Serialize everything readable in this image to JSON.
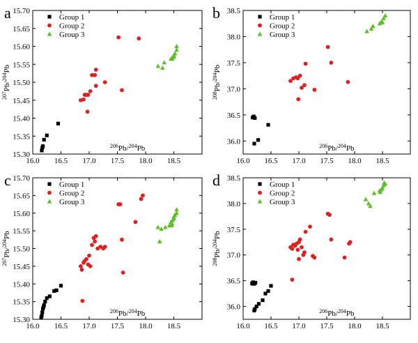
{
  "colors": {
    "group1": "#000000",
    "group2": "#e02020",
    "group3": "#5cbf2a"
  },
  "chart_data": [
    {
      "type": "scatter",
      "panel": "a",
      "xlabel": "206Pb/204Pb",
      "ylabel": "207Pb/204Pb",
      "xlim": [
        16.0,
        19.0
      ],
      "ylim": [
        15.3,
        15.7
      ],
      "xticks": [
        "16.0",
        "16.5",
        "17.0",
        "17.5",
        "18.0",
        "18.5"
      ],
      "yticks": [
        "15.30",
        "15.35",
        "15.40",
        "15.45",
        "15.50",
        "15.55",
        "15.60",
        "15.65",
        "15.70"
      ],
      "legend_position": "top-left",
      "series": [
        {
          "name": "Group 1",
          "marker": "square",
          "points": [
            [
              16.16,
              15.31
            ],
            [
              16.17,
              15.318
            ],
            [
              16.18,
              15.322
            ],
            [
              16.2,
              15.34
            ],
            [
              16.25,
              15.352
            ],
            [
              16.45,
              15.385
            ]
          ]
        },
        {
          "name": "Group 2",
          "marker": "circle",
          "points": [
            [
              16.85,
              15.45
            ],
            [
              16.9,
              15.452
            ],
            [
              16.92,
              15.465
            ],
            [
              16.95,
              15.465
            ],
            [
              16.98,
              15.465
            ],
            [
              16.97,
              15.418
            ],
            [
              17.02,
              15.475
            ],
            [
              17.05,
              15.52
            ],
            [
              17.1,
              15.52
            ],
            [
              17.12,
              15.535
            ],
            [
              17.12,
              15.49
            ],
            [
              17.28,
              15.5
            ],
            [
              17.52,
              15.625
            ],
            [
              17.58,
              15.478
            ],
            [
              17.88,
              15.622
            ]
          ]
        },
        {
          "name": "Group 3",
          "marker": "triangle",
          "points": [
            [
              18.22,
              15.545
            ],
            [
              18.3,
              15.54
            ],
            [
              18.33,
              15.555
            ],
            [
              18.45,
              15.565
            ],
            [
              18.48,
              15.57
            ],
            [
              18.5,
              15.575
            ],
            [
              18.52,
              15.58
            ],
            [
              18.55,
              15.59
            ],
            [
              18.55,
              15.6
            ],
            [
              18.47,
              15.565
            ],
            [
              18.5,
              15.57
            ]
          ]
        }
      ]
    },
    {
      "type": "scatter",
      "panel": "b",
      "xlabel": "206Pb/204Pb",
      "ylabel": "208Pb/204Pb",
      "xlim": [
        16.0,
        19.0
      ],
      "ylim": [
        35.75,
        38.5
      ],
      "xticks": [
        "16.0",
        "16.5",
        "17.0",
        "17.5",
        "18.0",
        "18.5"
      ],
      "yticks": [
        "36.0",
        "36.5",
        "37.0",
        "37.5",
        "38.0",
        "38.5"
      ],
      "legend_position": "top-left",
      "series": [
        {
          "name": "Group 1",
          "marker": "square",
          "points": [
            [
              16.17,
              36.45
            ],
            [
              16.19,
              36.47
            ],
            [
              16.21,
              36.44
            ],
            [
              16.2,
              35.95
            ],
            [
              16.27,
              36.02
            ],
            [
              16.45,
              36.31
            ]
          ]
        },
        {
          "name": "Group 2",
          "marker": "circle",
          "points": [
            [
              16.85,
              37.15
            ],
            [
              16.9,
              37.2
            ],
            [
              16.95,
              37.22
            ],
            [
              16.98,
              37.2
            ],
            [
              17.02,
              37.25
            ],
            [
              16.99,
              36.8
            ],
            [
              17.05,
              37.02
            ],
            [
              17.1,
              37.07
            ],
            [
              17.12,
              37.48
            ],
            [
              17.28,
              36.98
            ],
            [
              17.52,
              37.8
            ],
            [
              17.58,
              37.5
            ],
            [
              17.88,
              37.13
            ]
          ]
        },
        {
          "name": "Group 3",
          "marker": "triangle",
          "points": [
            [
              18.22,
              38.1
            ],
            [
              18.3,
              38.15
            ],
            [
              18.33,
              38.2
            ],
            [
              18.45,
              38.25
            ],
            [
              18.48,
              38.28
            ],
            [
              18.5,
              38.27
            ],
            [
              18.52,
              38.35
            ],
            [
              18.55,
              38.4
            ]
          ]
        }
      ]
    },
    {
      "type": "scatter",
      "panel": "c",
      "xlabel": "206Pb/204Pb",
      "ylabel": "207Pb/204Pb",
      "xlim": [
        16.0,
        19.0
      ],
      "ylim": [
        15.3,
        15.7
      ],
      "xticks": [
        "16.0",
        "16.5",
        "17.0",
        "17.5",
        "18.0",
        "18.5"
      ],
      "yticks": [
        "15.30",
        "15.35",
        "15.40",
        "15.45",
        "15.50",
        "15.55",
        "15.60",
        "15.65",
        "15.70"
      ],
      "legend_position": "top-left",
      "series": [
        {
          "name": "Group 1",
          "marker": "square",
          "points": [
            [
              16.15,
              15.305
            ],
            [
              16.16,
              15.31
            ],
            [
              16.17,
              15.32
            ],
            [
              16.18,
              15.33
            ],
            [
              16.19,
              15.335
            ],
            [
              16.2,
              15.34
            ],
            [
              16.22,
              15.35
            ],
            [
              16.25,
              15.36
            ],
            [
              16.3,
              15.365
            ],
            [
              16.38,
              15.38
            ],
            [
              16.42,
              15.382
            ],
            [
              16.5,
              15.395
            ]
          ]
        },
        {
          "name": "Group 2",
          "marker": "circle",
          "points": [
            [
              16.85,
              15.45
            ],
            [
              16.87,
              15.44
            ],
            [
              16.9,
              15.46
            ],
            [
              16.92,
              15.465
            ],
            [
              16.95,
              15.47
            ],
            [
              16.98,
              15.455
            ],
            [
              17.0,
              15.48
            ],
            [
              17.02,
              15.45
            ],
            [
              17.05,
              15.51
            ],
            [
              17.08,
              15.53
            ],
            [
              17.1,
              15.52
            ],
            [
              17.12,
              15.535
            ],
            [
              17.15,
              15.5
            ],
            [
              17.2,
              15.505
            ],
            [
              17.25,
              15.5
            ],
            [
              17.28,
              15.505
            ],
            [
              16.88,
              15.352
            ],
            [
              17.52,
              15.625
            ],
            [
              17.55,
              15.625
            ],
            [
              17.58,
              15.525
            ],
            [
              17.6,
              15.432
            ],
            [
              17.82,
              15.575
            ],
            [
              17.92,
              15.64
            ],
            [
              17.95,
              15.65
            ]
          ]
        },
        {
          "name": "Group 3",
          "marker": "triangle",
          "points": [
            [
              18.22,
              15.56
            ],
            [
              18.25,
              15.52
            ],
            [
              18.28,
              15.555
            ],
            [
              18.35,
              15.56
            ],
            [
              18.42,
              15.565
            ],
            [
              18.45,
              15.575
            ],
            [
              18.47,
              15.57
            ],
            [
              18.48,
              15.58
            ],
            [
              18.5,
              15.59
            ],
            [
              18.52,
              15.595
            ],
            [
              18.55,
              15.6
            ],
            [
              18.55,
              15.61
            ],
            [
              18.5,
              15.585
            ],
            [
              18.46,
              15.565
            ]
          ]
        }
      ]
    },
    {
      "type": "scatter",
      "panel": "d",
      "xlabel": "206Pb/204Pb",
      "ylabel": "208Pb/204Pb",
      "xlim": [
        16.0,
        19.0
      ],
      "ylim": [
        35.75,
        38.5
      ],
      "xticks": [
        "16.0",
        "16.5",
        "17.0",
        "17.5",
        "18.0",
        "18.5"
      ],
      "yticks": [
        "36.0",
        "36.5",
        "37.0",
        "37.5",
        "38.0",
        "38.5"
      ],
      "legend_position": "top-left",
      "series": [
        {
          "name": "Group 1",
          "marker": "square",
          "points": [
            [
              16.16,
              36.45
            ],
            [
              16.17,
              36.44
            ],
            [
              16.18,
              36.47
            ],
            [
              16.19,
              36.45
            ],
            [
              16.2,
              36.44
            ],
            [
              16.22,
              36.46
            ],
            [
              16.2,
              35.92
            ],
            [
              16.21,
              35.95
            ],
            [
              16.24,
              36.0
            ],
            [
              16.28,
              36.05
            ],
            [
              16.35,
              36.12
            ],
            [
              16.4,
              36.25
            ],
            [
              16.45,
              36.3
            ],
            [
              16.5,
              36.4
            ]
          ]
        },
        {
          "name": "Group 2",
          "marker": "circle",
          "points": [
            [
              16.85,
              37.15
            ],
            [
              16.88,
              37.12
            ],
            [
              16.9,
              37.2
            ],
            [
              16.93,
              37.18
            ],
            [
              16.96,
              37.22
            ],
            [
              16.98,
              37.1
            ],
            [
              17.0,
              37.25
            ],
            [
              17.02,
              37.3
            ],
            [
              17.05,
              37.15
            ],
            [
              17.08,
              37.0
            ],
            [
              17.1,
              37.05
            ],
            [
              17.12,
              37.45
            ],
            [
              17.2,
              37.55
            ],
            [
              17.25,
              36.98
            ],
            [
              17.28,
              36.95
            ],
            [
              16.88,
              36.52
            ],
            [
              17.0,
              36.92
            ],
            [
              17.52,
              37.8
            ],
            [
              17.55,
              37.78
            ],
            [
              17.58,
              37.3
            ],
            [
              17.82,
              36.95
            ],
            [
              17.9,
              37.22
            ],
            [
              17.92,
              37.25
            ]
          ]
        },
        {
          "name": "Group 3",
          "marker": "triangle",
          "points": [
            [
              18.2,
              38.08
            ],
            [
              18.25,
              38.0
            ],
            [
              18.28,
              37.95
            ],
            [
              18.35,
              38.2
            ],
            [
              18.45,
              38.25
            ],
            [
              18.48,
              38.27
            ],
            [
              18.5,
              38.3
            ],
            [
              18.52,
              38.35
            ],
            [
              18.55,
              38.38
            ],
            [
              18.53,
              38.4
            ],
            [
              18.46,
              38.22
            ]
          ]
        }
      ]
    }
  ]
}
